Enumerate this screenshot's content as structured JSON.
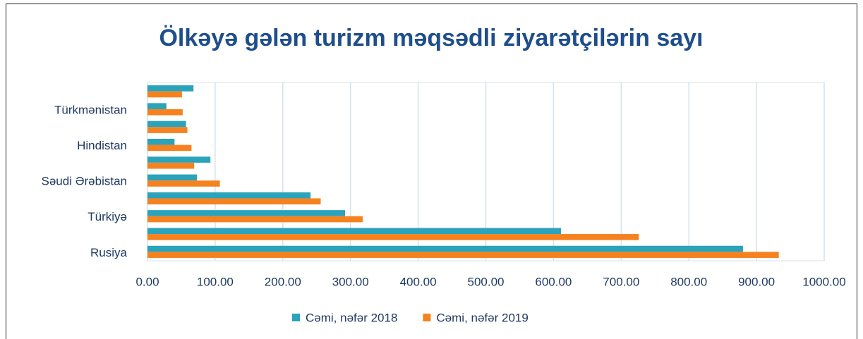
{
  "chart_data": {
    "type": "barh",
    "title": "Ölkəyə gələn turizm məqsədli ziyarətçilərin sayı",
    "categories": [
      "Rusiya",
      null,
      "Türkiyə",
      null,
      "Səudi Ərəbistan",
      null,
      "Hindistan",
      null,
      "Türkmənistan",
      null
    ],
    "series": [
      {
        "name": "Cəmi, nəfər 2018",
        "color": "#2aa3bb",
        "values": [
          880,
          611,
          292,
          241,
          73,
          93,
          40,
          57,
          28,
          68
        ]
      },
      {
        "name": "Cəmi, nəfər 2019",
        "color": "#f5821f",
        "values": [
          933,
          726,
          318,
          256,
          107,
          69,
          65,
          59,
          52,
          51
        ]
      }
    ],
    "xlim": [
      0,
      1000
    ],
    "xticks": [
      {
        "value": 0,
        "label": "0.00"
      },
      {
        "value": 100,
        "label": "100.00"
      },
      {
        "value": 200,
        "label": "200.00"
      },
      {
        "value": 300,
        "label": "300.00"
      },
      {
        "value": 400,
        "label": "400.00"
      },
      {
        "value": 500,
        "label": "500.00"
      },
      {
        "value": 600,
        "label": "600.00"
      },
      {
        "value": 700,
        "label": "700.00"
      },
      {
        "value": 800,
        "label": "800.00"
      },
      {
        "value": 900,
        "label": "900.00"
      },
      {
        "value": 1000,
        "label": "1000.00"
      }
    ],
    "grid": true,
    "legend": "bottom"
  }
}
